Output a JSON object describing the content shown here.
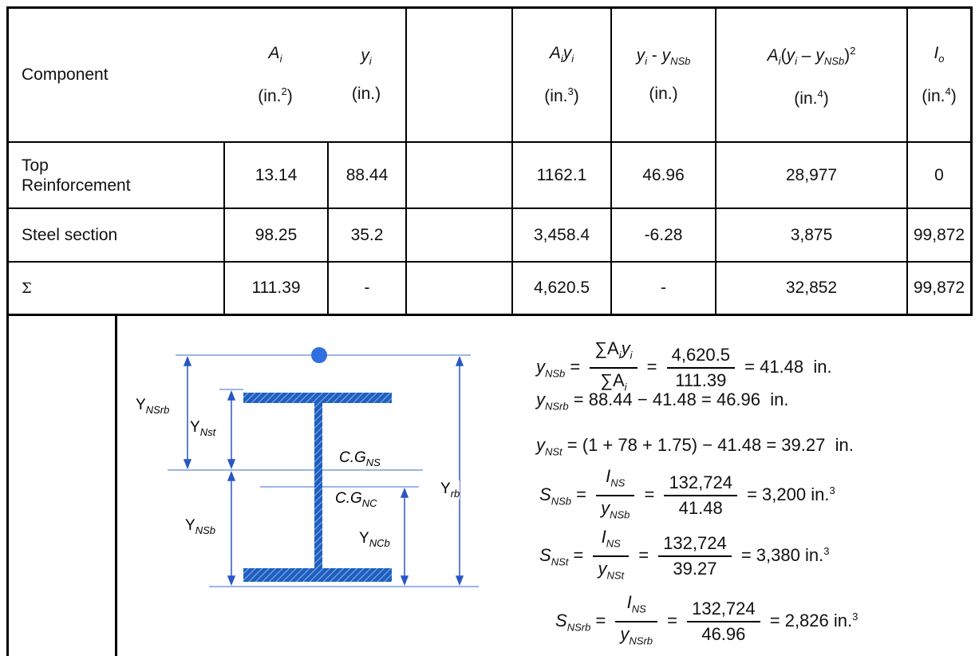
{
  "table": {
    "header": {
      "component": "Component",
      "ai_sym": "A",
      "ai_sub": "i",
      "ai_unit_pre": "(in.",
      "ai_unit_sup": "2",
      "ai_unit_post": ")",
      "yi_sym": "y",
      "yi_sub": "i",
      "yi_unit": "(in.)",
      "aiyi_sym1": "A",
      "aiyi_sub1": "i",
      "aiyi_sym2": "y",
      "aiyi_sub2": "i",
      "aiyi_unit_pre": "(in.",
      "aiyi_unit_sup": "3",
      "aiyi_unit_post": ")",
      "diff_sym1": "y",
      "diff_sub1": "i",
      "diff_mid": " - ",
      "diff_sym2": "y",
      "diff_sub2": "NSb",
      "diff_unit": "(in.)",
      "ai2_sym1": "A",
      "ai2_sub1": "i",
      "ai2_open": "(",
      "ai2_sym2": "y",
      "ai2_sub2": "i",
      "ai2_mid": " – ",
      "ai2_sym3": "y",
      "ai2_sub3": "NSb",
      "ai2_close": ")",
      "ai2_sup": "2",
      "ai2_unit_pre": "(in.",
      "ai2_unit_sup": "4",
      "ai2_unit_post": ")",
      "io_sym": "I",
      "io_sub": "o",
      "io_unit_pre": "(in.",
      "io_unit_sup": "4",
      "io_unit_post": ")"
    },
    "rows": [
      {
        "component": "Top\nReinforcement",
        "ai": "13.14",
        "yi": "88.44",
        "blank": "",
        "aiyi": "1162.1",
        "diff": "46.96",
        "ai2": "28,977",
        "io": "0"
      },
      {
        "component": "Steel section",
        "ai": "98.25",
        "yi": "35.2",
        "blank": "",
        "aiyi": "3,458.4",
        "diff": "-6.28",
        "ai2": "3,875",
        "io": "99,872"
      },
      {
        "component": "Σ",
        "ai": "111.39",
        "yi": "-",
        "blank": "",
        "aiyi": "4,620.5",
        "diff": "-",
        "ai2": "32,852",
        "io": "99,872"
      }
    ]
  },
  "diagram": {
    "labels": {
      "ynsrb": "Y",
      "ynsrb_sub": "NSrb",
      "ynst": "Y",
      "ynst_sub": "Nst",
      "ynsb": "Y",
      "ynsb_sub": "NSb",
      "ync b": "",
      "yncb": "Y",
      "yncb_sub": "NCb",
      "yrb": "Y",
      "yrb_sub": "rb",
      "cgns": "C.G",
      "cgns_sub": "NS",
      "cgnc": "C.G",
      "cgnc_sub": "NC"
    },
    "colors": {
      "steel": "#1f5fbf",
      "lines": "#3a6fd0",
      "dot": "#2f6fe0"
    }
  },
  "equations": {
    "e1": {
      "lhs": "y",
      "lhs_sub": "NSb",
      "num": "∑A",
      "num_sub": "i",
      "num2": "y",
      "num2_sub": "i",
      "den": "∑A",
      "den_sub": "i",
      "num_val": "4,620.5",
      "den_val": "111.39",
      "result": "41.48",
      "unit": "in."
    },
    "e2": {
      "lhs": "y",
      "lhs_sub": "NSrb",
      "rhs": "= 88.44 − 41.48 = 46.96",
      "unit": "in."
    },
    "e3": {
      "lhs": "y",
      "lhs_sub": "NSt",
      "rhs": "= (1 + 78 + 1.75) − 41.48 = 39.27",
      "unit": "in."
    },
    "e4": {
      "lhs": "S",
      "lhs_sub": "NSb",
      "num": "I",
      "num_sub": "NS",
      "den": "y",
      "den_sub": "NSb",
      "num_val": "132,724",
      "den_val": "41.48",
      "result": "3,200",
      "unit": "in.",
      "unit_sup": "3"
    },
    "e5": {
      "lhs": "S",
      "lhs_sub": "NSt",
      "num": "I",
      "num_sub": "NS",
      "den": "y",
      "den_sub": "NSt",
      "num_val": "132,724",
      "den_val": "39.27",
      "result": "3,380",
      "unit": "in.",
      "unit_sup": "3"
    },
    "e6": {
      "lhs": "S",
      "lhs_sub": "NSrb",
      "num": "I",
      "num_sub": "NS",
      "den": "y",
      "den_sub": "NSrb",
      "num_val": "132,724",
      "den_val": "46.96",
      "result": "2,826",
      "unit": "in.",
      "unit_sup": "3"
    }
  }
}
